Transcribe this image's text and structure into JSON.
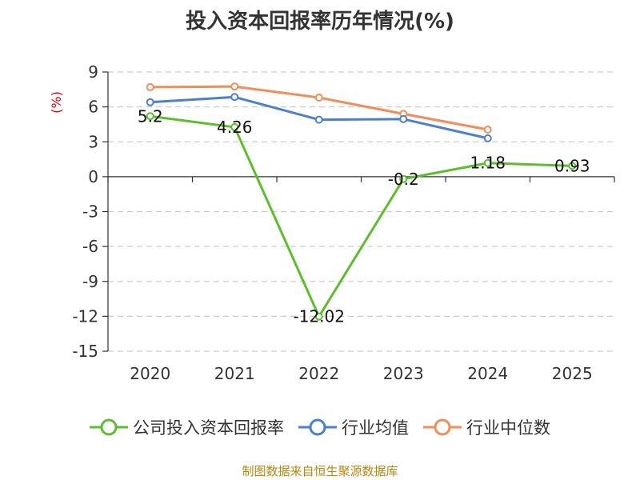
{
  "title": "投入资本回报率历年情况(%)",
  "source": "制图数据来自恒生聚源数据库",
  "chart_data": {
    "type": "line",
    "title": "投入资本回报率历年情况(%)",
    "ylabel": "(%)",
    "categories": [
      "2020",
      "2021",
      "2022",
      "2023",
      "2024",
      "2025"
    ],
    "yticks": [
      "9",
      "6",
      "3",
      "0",
      "-3",
      "-6",
      "-9",
      "-12",
      "-15"
    ],
    "ylim": [
      -15,
      9
    ],
    "grid": "horizontal-dashed",
    "legend_position": "bottom",
    "series": [
      {
        "name": "公司投入资本回报率",
        "color": "#5bbf2a",
        "values": [
          5.2,
          4.26,
          -12.02,
          -0.2,
          1.18,
          0.93
        ],
        "labels": [
          "5.2",
          "4.26",
          "-12.02",
          "-0.2",
          "1.18",
          "0.93"
        ]
      },
      {
        "name": "行业均值",
        "color": "#4a7fd8",
        "values": [
          6.4,
          6.85,
          4.9,
          4.95,
          3.3,
          null
        ]
      },
      {
        "name": "行业中位数",
        "color": "#f58c55",
        "values": [
          7.7,
          7.75,
          6.8,
          5.4,
          4.05,
          null
        ]
      }
    ]
  }
}
